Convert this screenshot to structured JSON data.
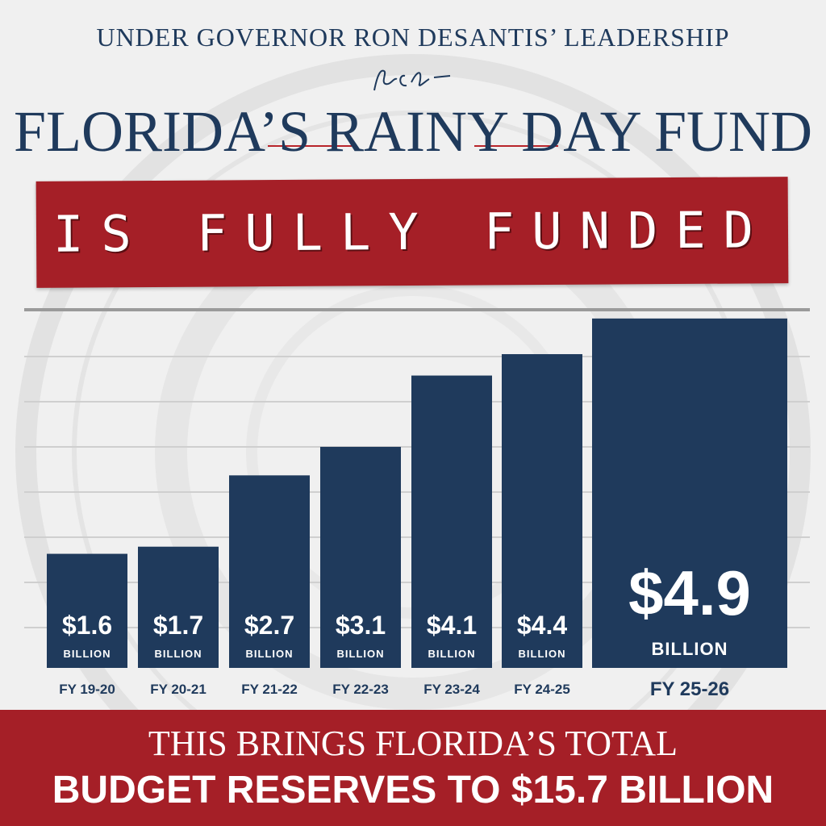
{
  "header": {
    "kicker": "UNDER GOVERNOR RON DESANTIS’ LEADERSHIP",
    "title": "FLORIDA’S RAINY DAY FUND",
    "banner": "IS FULLY FUNDED"
  },
  "footer": {
    "line1": "THIS BRINGS FLORIDA’S TOTAL",
    "line2": "BUDGET RESERVES TO $15.7 BILLION"
  },
  "colors": {
    "navy": "#1f3a5c",
    "red": "#a51f27",
    "background": "#f0f0f0"
  },
  "chart_data": {
    "type": "bar",
    "categories": [
      "FY 19-20",
      "FY 20-21",
      "FY 21-22",
      "FY 22-23",
      "FY 23-24",
      "FY 24-25",
      "FY 25-26"
    ],
    "values": [
      1.6,
      1.7,
      2.7,
      3.1,
      4.1,
      4.4,
      4.9
    ],
    "value_labels": [
      "$1.6",
      "$1.7",
      "$2.7",
      "$3.1",
      "$4.1",
      "$4.4",
      "$4.9"
    ],
    "unit_label": "BILLION",
    "highlight_last": true,
    "title": "",
    "xlabel": "",
    "ylabel": "",
    "ylim": [
      0,
      5
    ],
    "grid": true,
    "legend": "none"
  }
}
